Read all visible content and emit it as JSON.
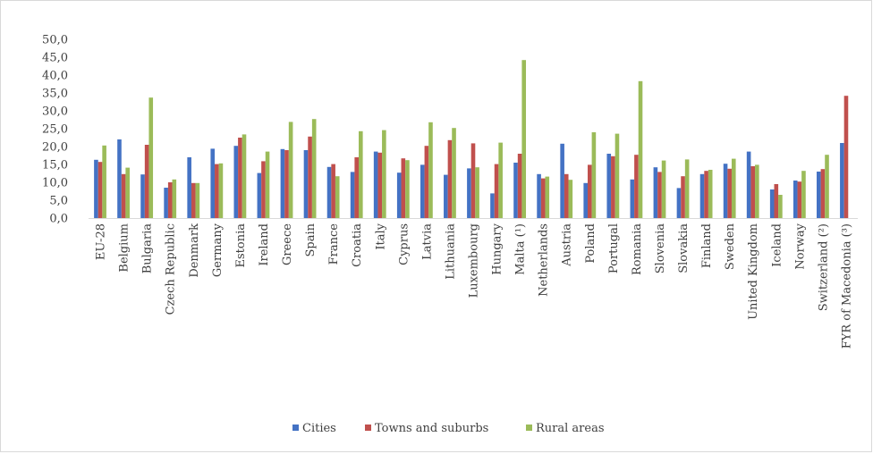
{
  "chart_data": {
    "type": "bar",
    "title": "",
    "xlabel": "",
    "ylabel": "",
    "ylim": [
      0,
      50
    ],
    "ytick_step": 5,
    "ytick_labels": [
      "0,0",
      "5,0",
      "10,0",
      "15,0",
      "20,0",
      "25,0",
      "30,0",
      "35,0",
      "40,0",
      "45,0",
      "50,0"
    ],
    "grid": false,
    "legend_position": "bottom",
    "categories": [
      "EU-28",
      "Belgium",
      "Bulgaria",
      "Czech Republic",
      "Denmark",
      "Germany",
      "Estonia",
      "Ireland",
      "Greece",
      "Spain",
      "France",
      "Croatia",
      "Italy",
      "Cyprus",
      "Latvia",
      "Lithuania",
      "Luxembourg",
      "Hungary",
      "Malta (¹)",
      "Netherlands",
      "Austria",
      "Poland",
      "Portugal",
      "Romania",
      "Slovenia",
      "Slovakia",
      "Finland",
      "Sweden",
      "United Kingdom",
      "Iceland",
      "Norway",
      "Switzerland (²)",
      "FYR of Macedonia (³)"
    ],
    "series": [
      {
        "name": "Cities",
        "color": "#4472c4",
        "values": [
          16.3,
          22.0,
          12.2,
          8.5,
          17.0,
          19.4,
          20.2,
          12.6,
          19.3,
          19.0,
          14.3,
          12.9,
          18.6,
          12.7,
          14.9,
          12.1,
          13.9,
          6.9,
          15.5,
          12.3,
          20.8,
          9.8,
          18.0,
          10.8,
          14.2,
          8.4,
          12.3,
          15.2,
          18.6,
          8.0,
          10.5,
          13.0,
          21.0
        ]
      },
      {
        "name": "Towns and suburbs",
        "color": "#c0504d",
        "values": [
          15.7,
          12.3,
          20.5,
          10.0,
          9.8,
          15.1,
          22.5,
          15.9,
          19.0,
          22.8,
          15.1,
          17.0,
          18.3,
          16.7,
          20.2,
          21.8,
          20.9,
          15.1,
          18.0,
          11.1,
          12.3,
          14.9,
          17.3,
          17.7,
          12.9,
          11.7,
          13.2,
          13.8,
          14.5,
          9.5,
          10.2,
          13.7,
          34.2
        ]
      },
      {
        "name": "Rural areas",
        "color": "#9bbb59",
        "values": [
          20.3,
          14.1,
          33.7,
          10.8,
          9.8,
          15.3,
          23.4,
          18.6,
          26.9,
          27.7,
          11.7,
          24.3,
          24.6,
          16.2,
          26.8,
          25.2,
          14.2,
          21.1,
          44.2,
          11.6,
          10.7,
          24.0,
          23.6,
          38.3,
          16.1,
          16.4,
          13.5,
          16.6,
          14.9,
          6.5,
          13.2,
          17.7,
          0
        ]
      }
    ]
  }
}
